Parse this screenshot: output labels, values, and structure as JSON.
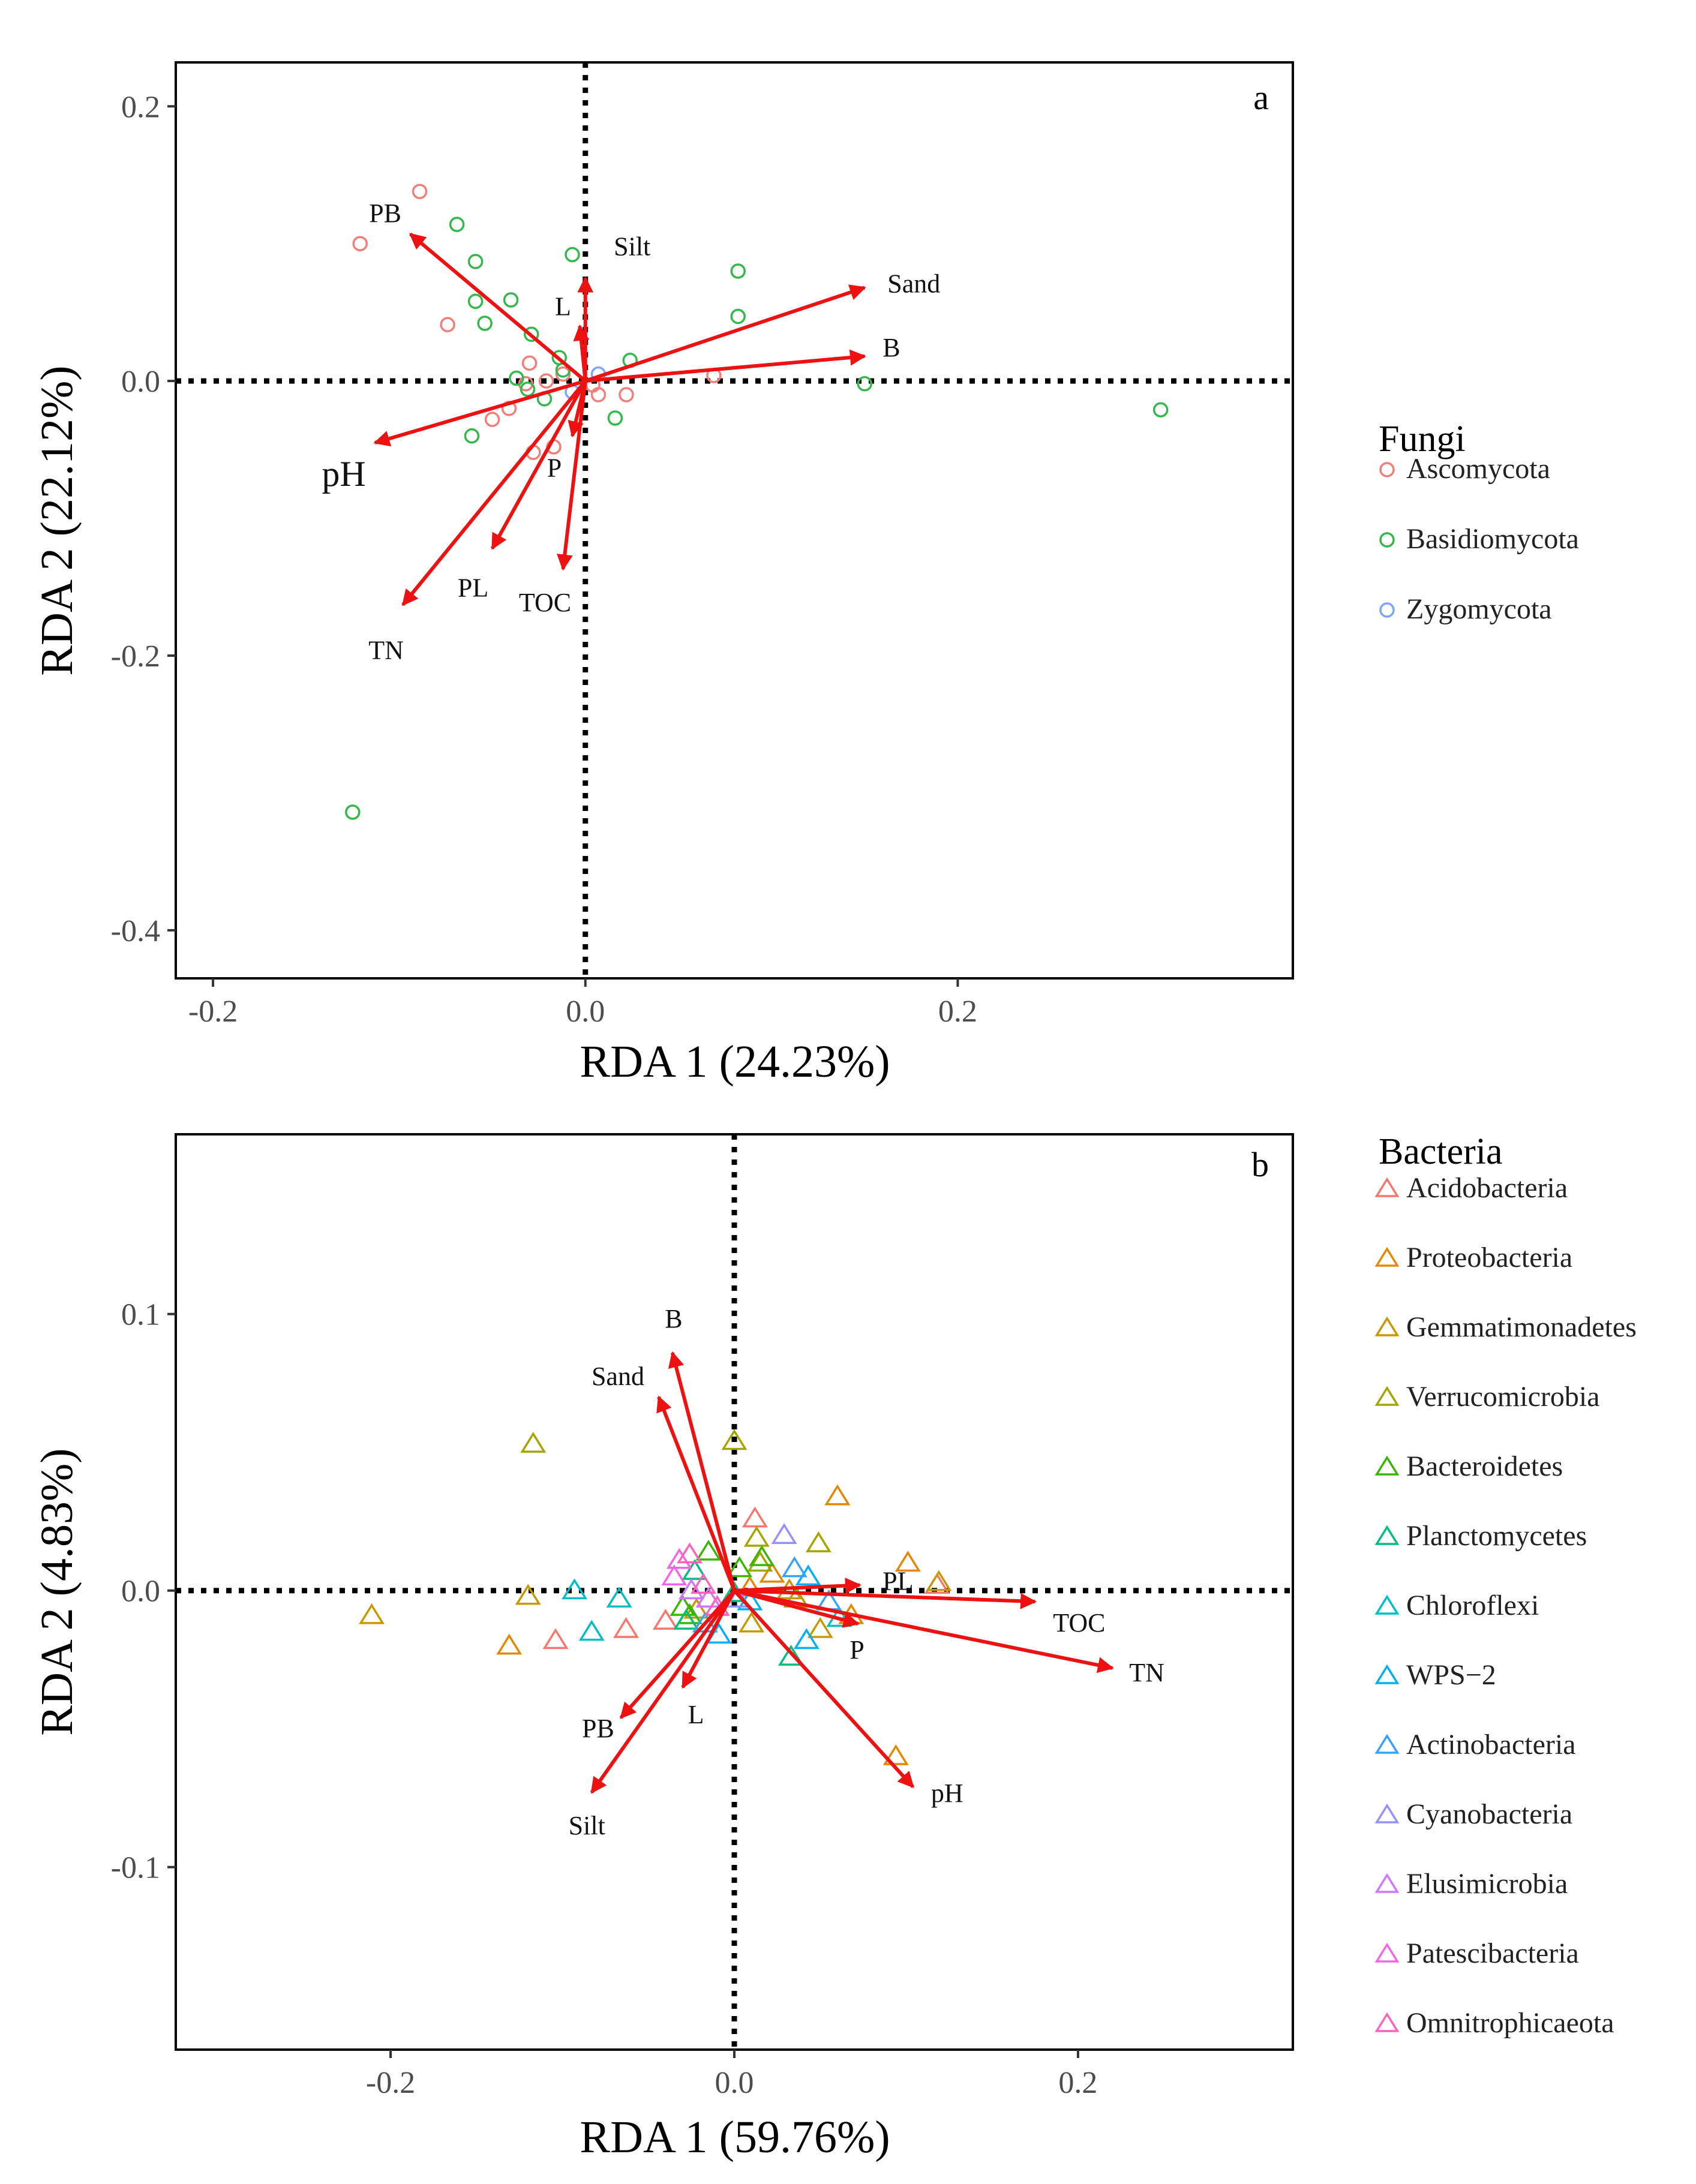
{
  "panels": [
    {
      "id": "a",
      "panel_label": "a",
      "legend_title": "Fungi",
      "legend_items": [
        {
          "label": "Ascomycota",
          "color": "#f07f7a"
        },
        {
          "label": "Basidiomycota",
          "color": "#33b84a"
        },
        {
          "label": "Zygomycota",
          "color": "#7ea6f4"
        }
      ]
    },
    {
      "id": "b",
      "panel_label": "b",
      "legend_title": "Bacteria",
      "legend_items": [
        {
          "label": "Acidobacteria",
          "color": "#f8766d"
        },
        {
          "label": "Proteobacteria",
          "color": "#e58700"
        },
        {
          "label": "Gemmatimonadetes",
          "color": "#c99800"
        },
        {
          "label": "Verrucomicrobia",
          "color": "#a3a500"
        },
        {
          "label": "Bacteroidetes",
          "color": "#39b600"
        },
        {
          "label": "Planctomycetes",
          "color": "#00bf7d"
        },
        {
          "label": "Chloroflexi",
          "color": "#00bfc4"
        },
        {
          "label": "WPS−2",
          "color": "#00b0f6"
        },
        {
          "label": "Actinobacteria",
          "color": "#35a2ff"
        },
        {
          "label": "Cyanobacteria",
          "color": "#9590ff"
        },
        {
          "label": "Elusimicrobia",
          "color": "#d376ff"
        },
        {
          "label": "Patescibacteria",
          "color": "#f365e6"
        },
        {
          "label": "Omnitrophicaeota",
          "color": "#ff62bc"
        }
      ]
    }
  ],
  "chart_data": [
    {
      "type": "scatter",
      "title": "a",
      "xlabel": "RDA 1 (24.23%)",
      "ylabel": "RDA 2 (22.12%)",
      "xlim": [
        -0.22,
        0.38
      ],
      "ylim": [
        -0.435,
        0.232
      ],
      "xticks": [
        -0.2,
        0.0,
        0.2
      ],
      "xtick_labels": [
        "-0.2",
        "0.0",
        "0.2"
      ],
      "yticks": [
        0.2,
        0.0,
        -0.2,
        -0.4
      ],
      "ytick_labels": [
        "0.2",
        "0.0",
        "-0.2",
        "-0.4"
      ],
      "grid": false,
      "reference_lines": {
        "x": 0,
        "y": 0,
        "style": "dotted"
      },
      "marker": "circle",
      "series": [
        {
          "name": "Ascomycota",
          "color": "#f07f7a",
          "points": [
            [
              -0.089,
              0.138
            ],
            [
              -0.121,
              0.1
            ],
            [
              -0.074,
              0.041
            ],
            [
              -0.03,
              0.013
            ],
            [
              -0.021,
              0.0
            ],
            [
              -0.012,
              0.005
            ],
            [
              -0.032,
              -0.002
            ],
            [
              -0.041,
              -0.02
            ],
            [
              -0.05,
              -0.028
            ],
            [
              -0.028,
              -0.052
            ],
            [
              -0.017,
              -0.048
            ],
            [
              0.007,
              -0.01
            ],
            [
              0.022,
              -0.01
            ],
            [
              0.069,
              0.004
            ],
            [
              0.004,
              -0.003
            ]
          ]
        },
        {
          "name": "Basidiomycota",
          "color": "#33b84a",
          "points": [
            [
              -0.069,
              0.114
            ],
            [
              -0.059,
              0.087
            ],
            [
              -0.059,
              0.058
            ],
            [
              -0.054,
              0.042
            ],
            [
              -0.04,
              0.059
            ],
            [
              -0.029,
              0.034
            ],
            [
              -0.014,
              0.017
            ],
            [
              -0.007,
              0.092
            ],
            [
              -0.012,
              0.008
            ],
            [
              -0.037,
              0.002
            ],
            [
              -0.031,
              -0.006
            ],
            [
              -0.022,
              -0.013
            ],
            [
              -0.061,
              -0.04
            ],
            [
              0.024,
              0.015
            ],
            [
              0.016,
              -0.027
            ],
            [
              0.082,
              0.08
            ],
            [
              0.082,
              0.047
            ],
            [
              0.15,
              -0.002
            ],
            [
              0.309,
              -0.021
            ],
            [
              -0.125,
              -0.314
            ]
          ]
        },
        {
          "name": "Zygomycota",
          "color": "#7ea6f4",
          "points": [
            [
              0.007,
              0.005
            ],
            [
              -0.007,
              -0.008
            ]
          ]
        }
      ],
      "arrows": [
        {
          "label": "PB",
          "x": -0.094,
          "y": 0.107
        },
        {
          "label": "Silt",
          "x": 0.0,
          "y": 0.075
        },
        {
          "label": "L",
          "x": -0.003,
          "y": 0.04
        },
        {
          "label": "Sand",
          "x": 0.15,
          "y": 0.068
        },
        {
          "label": "B",
          "x": 0.15,
          "y": 0.018
        },
        {
          "label": "pH",
          "x": -0.113,
          "y": -0.045
        },
        {
          "label": "P",
          "x": -0.007,
          "y": -0.04
        },
        {
          "label": "PL",
          "x": -0.05,
          "y": -0.122
        },
        {
          "label": "TOC",
          "x": -0.012,
          "y": -0.137
        },
        {
          "label": "TN",
          "x": -0.098,
          "y": -0.163
        }
      ]
    },
    {
      "type": "scatter",
      "title": "b",
      "xlabel": "RDA 1 (59.76%)",
      "ylabel": "RDA 2 (4.83%)",
      "xlim": [
        -0.325,
        0.325
      ],
      "ylim": [
        -0.166,
        0.165
      ],
      "xticks": [
        -0.2,
        0.0,
        0.2
      ],
      "xtick_labels": [
        "-0.2",
        "0.0",
        "0.2"
      ],
      "yticks": [
        0.1,
        0.0,
        -0.1
      ],
      "ytick_labels": [
        "0.1",
        "0.0",
        "-0.1"
      ],
      "grid": false,
      "reference_lines": {
        "x": 0,
        "y": 0,
        "style": "dotted"
      },
      "marker": "triangle",
      "series": [
        {
          "name": "Acidobacteria",
          "color": "#f8766d",
          "points": [
            [
              -0.104,
              -0.018
            ],
            [
              -0.063,
              -0.014
            ],
            [
              -0.04,
              -0.011
            ],
            [
              0.012,
              0.026
            ],
            [
              0.118,
              0.002
            ]
          ]
        },
        {
          "name": "Proteobacteria",
          "color": "#e58700",
          "points": [
            [
              -0.131,
              -0.02
            ],
            [
              0.06,
              0.034
            ],
            [
              0.101,
              0.01
            ],
            [
              0.094,
              -0.06
            ],
            [
              0.068,
              -0.009
            ],
            [
              0.009,
              0.001
            ],
            [
              0.022,
              0.006
            ]
          ]
        },
        {
          "name": "Gemmatimonadetes",
          "color": "#c99800",
          "points": [
            [
              -0.211,
              -0.009
            ],
            [
              -0.12,
              -0.002
            ],
            [
              0.01,
              -0.012
            ],
            [
              0.032,
              0.0
            ],
            [
              0.05,
              -0.014
            ],
            [
              0.119,
              0.003
            ],
            [
              -0.022,
              -0.007
            ]
          ]
        },
        {
          "name": "Verrucomicrobia",
          "color": "#a3a500",
          "points": [
            [
              -0.117,
              0.053
            ],
            [
              0.0,
              0.054
            ],
            [
              0.049,
              0.017
            ],
            [
              0.013,
              0.019
            ],
            [
              0.015,
              0.01
            ],
            [
              0.036,
              -0.003
            ]
          ]
        },
        {
          "name": "Bacteroidetes",
          "color": "#39b600",
          "points": [
            [
              -0.03,
              -0.006
            ],
            [
              -0.026,
              -0.009
            ],
            [
              0.003,
              0.008
            ],
            [
              0.016,
              0.012
            ],
            [
              -0.015,
              0.014
            ]
          ]
        },
        {
          "name": "Planctomycetes",
          "color": "#00bf7d",
          "points": [
            [
              -0.023,
              0.007
            ],
            [
              0.0,
              -0.001
            ],
            [
              0.033,
              -0.024
            ],
            [
              -0.028,
              -0.011
            ]
          ]
        },
        {
          "name": "Chloroflexi",
          "color": "#00bfc4",
          "points": [
            [
              -0.093,
              0.0
            ],
            [
              -0.083,
              -0.015
            ],
            [
              -0.067,
              -0.003
            ],
            [
              0.061,
              -0.01
            ]
          ]
        },
        {
          "name": "WPS−2",
          "color": "#00b0f6",
          "points": [
            [
              0.043,
              0.005
            ],
            [
              0.042,
              -0.018
            ],
            [
              -0.009,
              -0.016
            ],
            [
              0.009,
              -0.004
            ]
          ]
        },
        {
          "name": "Actinobacteria",
          "color": "#35a2ff",
          "points": [
            [
              0.035,
              0.008
            ],
            [
              0.055,
              -0.004
            ],
            [
              -0.017,
              -0.012
            ]
          ]
        },
        {
          "name": "Cyanobacteria",
          "color": "#9590ff",
          "points": [
            [
              0.029,
              0.02
            ],
            [
              0.002,
              -0.003
            ]
          ]
        },
        {
          "name": "Elusimicrobia",
          "color": "#d376ff",
          "points": [
            [
              -0.025,
              0.0
            ],
            [
              -0.015,
              -0.003
            ]
          ]
        },
        {
          "name": "Patescibacteria",
          "color": "#f365e6",
          "points": [
            [
              -0.035,
              0.005
            ],
            [
              -0.032,
              0.011
            ]
          ]
        },
        {
          "name": "Omnitrophicaeota",
          "color": "#ff62bc",
          "points": [
            [
              -0.026,
              0.013
            ],
            [
              -0.018,
              0.002
            ],
            [
              -0.01,
              -0.006
            ]
          ]
        }
      ],
      "arrows": [
        {
          "label": "B",
          "x": -0.036,
          "y": 0.086
        },
        {
          "label": "Sand",
          "x": -0.044,
          "y": 0.07
        },
        {
          "label": "PL",
          "x": 0.073,
          "y": 0.002
        },
        {
          "label": "TOC",
          "x": 0.175,
          "y": -0.004
        },
        {
          "label": "TN",
          "x": 0.22,
          "y": -0.028
        },
        {
          "label": "P",
          "x": 0.072,
          "y": -0.012
        },
        {
          "label": "pH",
          "x": 0.104,
          "y": -0.071
        },
        {
          "label": "L",
          "x": -0.03,
          "y": -0.035
        },
        {
          "label": "PB",
          "x": -0.066,
          "y": -0.046
        },
        {
          "label": "Silt",
          "x": -0.083,
          "y": -0.073
        }
      ]
    }
  ]
}
